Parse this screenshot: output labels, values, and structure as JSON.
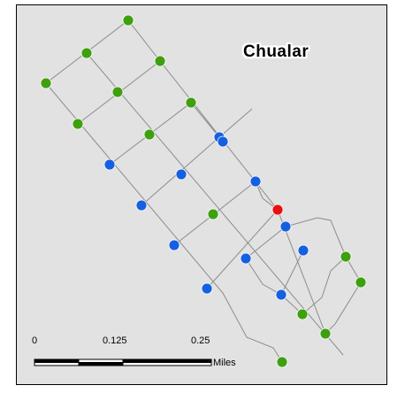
{
  "map": {
    "place_name": "Chualar",
    "colors": {
      "background": "#e2e2e2",
      "road": "#8c8c8c",
      "node_green": "#3ea00f",
      "node_blue": "#1560e0",
      "node_red": "#e81010"
    }
  },
  "scale_bar": {
    "tick_0": "0",
    "tick_1": "0.125",
    "tick_2": "0.25",
    "unit": "Miles"
  }
}
